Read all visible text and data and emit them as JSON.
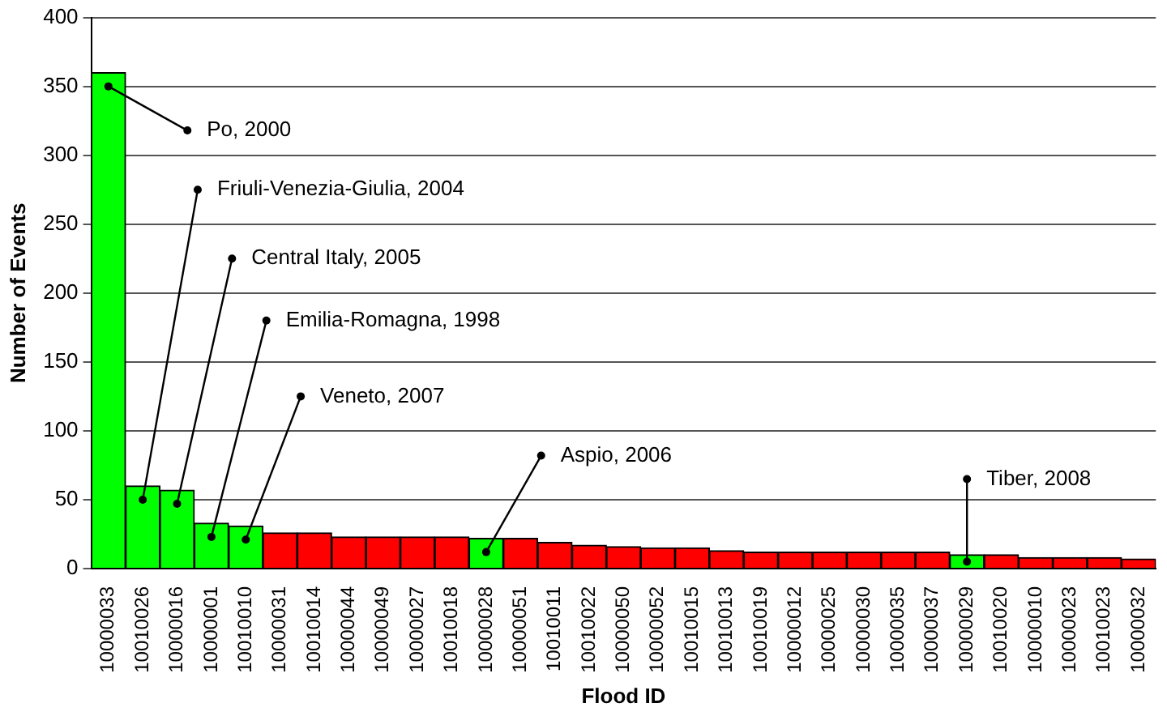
{
  "chart_data": {
    "type": "bar",
    "xlabel": "Flood ID",
    "ylabel": "Number of Events",
    "categories": [
      "10000033",
      "10010026",
      "10000016",
      "10000001",
      "10010010",
      "10000031",
      "10010014",
      "10000044",
      "10000049",
      "10000027",
      "10010018",
      "10000028",
      "10000051",
      "10010011",
      "10010022",
      "10000050",
      "10000052",
      "10010015",
      "10010013",
      "10010019",
      "10000012",
      "10000025",
      "10000030",
      "10000035",
      "10000037",
      "10000029",
      "10010020",
      "10000010",
      "10000023",
      "10010023",
      "10000032"
    ],
    "values": [
      360,
      60,
      57,
      33,
      31,
      26,
      26,
      23,
      23,
      23,
      23,
      22,
      22,
      19,
      17,
      16,
      15,
      15,
      13,
      12,
      12,
      12,
      12,
      12,
      12,
      10,
      10,
      8,
      8,
      8,
      7
    ],
    "colors": [
      "#00ff00",
      "#00ff00",
      "#00ff00",
      "#00ff00",
      "#00ff00",
      "#ff0000",
      "#ff0000",
      "#ff0000",
      "#ff0000",
      "#ff0000",
      "#ff0000",
      "#00ff00",
      "#ff0000",
      "#ff0000",
      "#ff0000",
      "#ff0000",
      "#ff0000",
      "#ff0000",
      "#ff0000",
      "#ff0000",
      "#ff0000",
      "#ff0000",
      "#ff0000",
      "#ff0000",
      "#ff0000",
      "#00ff00",
      "#ff0000",
      "#ff0000",
      "#ff0000",
      "#ff0000",
      "#ff0000"
    ],
    "ylim": [
      0,
      400
    ],
    "yticks": [
      0,
      50,
      100,
      150,
      200,
      250,
      300,
      350,
      400
    ],
    "grid": "y",
    "legend": false,
    "annotations": [
      {
        "text": "Po, 2000",
        "x": "10000033",
        "y": 360
      },
      {
        "text": "Friuli-Venezia-Giulia, 2004",
        "x": "10010026",
        "y": 60
      },
      {
        "text": "Central Italy, 2005",
        "x": "10000016",
        "y": 57
      },
      {
        "text": "Emilia-Romagna, 1998",
        "x": "10000001",
        "y": 33
      },
      {
        "text": "Veneto, 2007",
        "x": "10010010",
        "y": 31
      },
      {
        "text": "Aspio, 2006",
        "x": "10000028",
        "y": 22
      },
      {
        "text": "Tiber, 2008",
        "x": "10000029",
        "y": 10
      }
    ]
  }
}
